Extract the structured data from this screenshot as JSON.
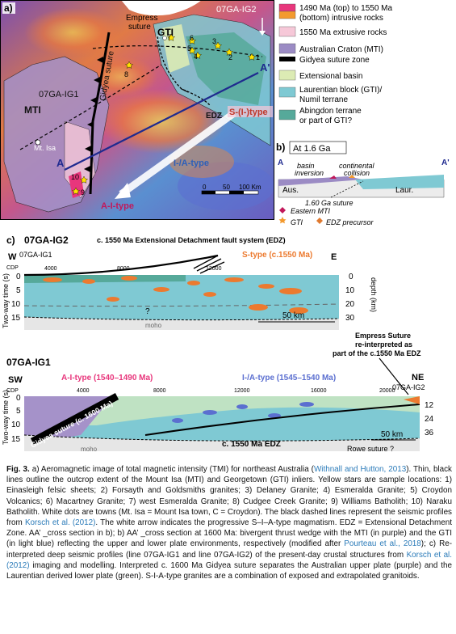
{
  "panel_a": {
    "label": "a)",
    "empress_suture": [
      "Empress",
      "suture"
    ],
    "gti": "GTI",
    "mti": "MTI",
    "mt_isa": "Mt. Isa",
    "profile_ig2": "07GA-IG2",
    "profile_ig1": "07GA-IG1",
    "gidyea_suture": "Gidyea suture",
    "edz": "EDZ",
    "s_i_type": "S-(I-)type",
    "i_a_type": "I-/A-type",
    "a_i_type": "A-I-type",
    "point_a": "A",
    "point_a_prime": "A'",
    "town_c": "C",
    "scale_labels": [
      "0",
      "50",
      "100 Km"
    ],
    "sample_numbers": [
      "1",
      "2",
      "3",
      "4",
      "5",
      "6",
      "7",
      "8",
      "9",
      "10"
    ]
  },
  "legend": {
    "items": [
      {
        "label": "1490 Ma (top) to 1550 Ma (bottom) intrusive rocks",
        "color_top": "#e8367c",
        "color_bottom": "#f39a2e"
      },
      {
        "label": "1550 Ma extrusive rocks",
        "color": "#f6c8d8"
      },
      {
        "label": "Australian Craton (MTI)",
        "color": "#9b8bc4"
      },
      {
        "label": "Gidyea suture zone",
        "color": "#000000"
      },
      {
        "label": "Extensional basin",
        "color": "#dcebb4"
      },
      {
        "label": "Laurentian block (GTI)/ Numil terrane",
        "color": "#7fc9d3"
      },
      {
        "label": "Abingdon terrane or part of GTI?",
        "color": "#56a99a"
      }
    ]
  },
  "panel_b": {
    "label": "b)",
    "title": "At 1.6 Ga",
    "point_a": "A",
    "point_a_prime": "A'",
    "basin_inversion": [
      "basin",
      "inversion"
    ],
    "continental_collision": [
      "continental",
      "collision"
    ],
    "aus": "Aus.",
    "laur": "Laur.",
    "suture": "1.60 Ga suture",
    "legend": [
      "Eastern MTI",
      "GTI",
      "EDZ precursor"
    ]
  },
  "panel_c": {
    "label": "c)",
    "ig2_title": "07GA-IG2",
    "edz_system": "c. 1550 Ma Extensional Detachment fault system (EDZ)",
    "w": "W",
    "e": "E",
    "cdp": "CDP",
    "ig2_cdps": [
      "4000",
      "8000",
      "12000"
    ],
    "ig2_ref": "07GA-IG1",
    "s_type": "S-type (c.1550 Ma)",
    "twt_label": "Two-way time (s)",
    "depth_label": "depth (km)",
    "ig2_time_ticks": [
      "0",
      "5",
      "10",
      "15"
    ],
    "ig2_depth_ticks": [
      "0",
      "10",
      "20",
      "30"
    ],
    "question": "?",
    "moho": "moho",
    "scale": "50 km",
    "empress_note": [
      "Empress Suture",
      "re-interpreted as",
      "part of the c.1550 Ma EDZ"
    ],
    "ig1_title": "07GA-IG1",
    "sw": "SW",
    "ne": "NE",
    "ig1_ref": "07GA-IG2",
    "a_i_type": "A-I-type (1540–1490 Ma)",
    "i_a_type": "I-/A-type (1545–1540 Ma)",
    "ig1_cdps": [
      "4000",
      "8000",
      "12000",
      "16000",
      "20000"
    ],
    "ig1_time_ticks": [
      "0",
      "5",
      "10",
      "15"
    ],
    "ig1_depth_ticks": [
      "12",
      "24",
      "36"
    ],
    "gidyea": "Gidyea suture (c. 1600 Ma)",
    "ig1_edz": "c. 1550 Ma EDZ",
    "rowe": "Rowe suture ?"
  },
  "caption": {
    "p1": "Fig. 3.",
    "p2": " a) Aeromagnetic image of total magnetic intensity (TMI) for northeast Australia (",
    "c1": "Withnall and Hutton, 2013",
    "p3": "). Thin, black lines outline the outcrop extent of the Mount Isa (MTI) and Georgetown (GTI) inliers. Yellow stars are sample locations: 1) Einasleigh felsic sheets; 2) Forsayth and Goldsmiths granites; 3) Delaney Granite; 4) Esmeralda Granite; 5) Croydon Volcanics; 6) Macartney Granite; 7) west Esmeralda Granite; 8) Cudgee Creek Granite; 9) Williams Batholith; 10) Naraku Batholith. White dots are towns (Mt. Isa = Mount Isa town, C = Croydon). The black dashed lines represent the seismic profiles from ",
    "c2": "Korsch et al. (2012)",
    "p4": ". The white arrow indicates the progressive S–I–A-type magmatism. EDZ = Extensional Detachment Zone. AA’ _cross section in b); b) AA’ _cross section at 1600 Ma: bivergent thrust wedge with the MTI (in purple) and the GTI (in light blue) reflecting the upper and lower plate environments, respectively (modified after ",
    "c3": "Pourteau et al., 2018",
    "p5": "); c) Re-interpreted deep seismic profiles (line 07GA-IG1 and line 07GA-IG2) of the present-day crustal structures from ",
    "c4": "Korsch et al. (2012)",
    "p6": " imaging and modelling. Interpreted c. 1600 Ma Gidyea suture separates the Australian upper plate (purple) and the Laurentian derived lower plate (green). S-I-A-type granites are a combination of exposed and extrapolated granitoids."
  }
}
